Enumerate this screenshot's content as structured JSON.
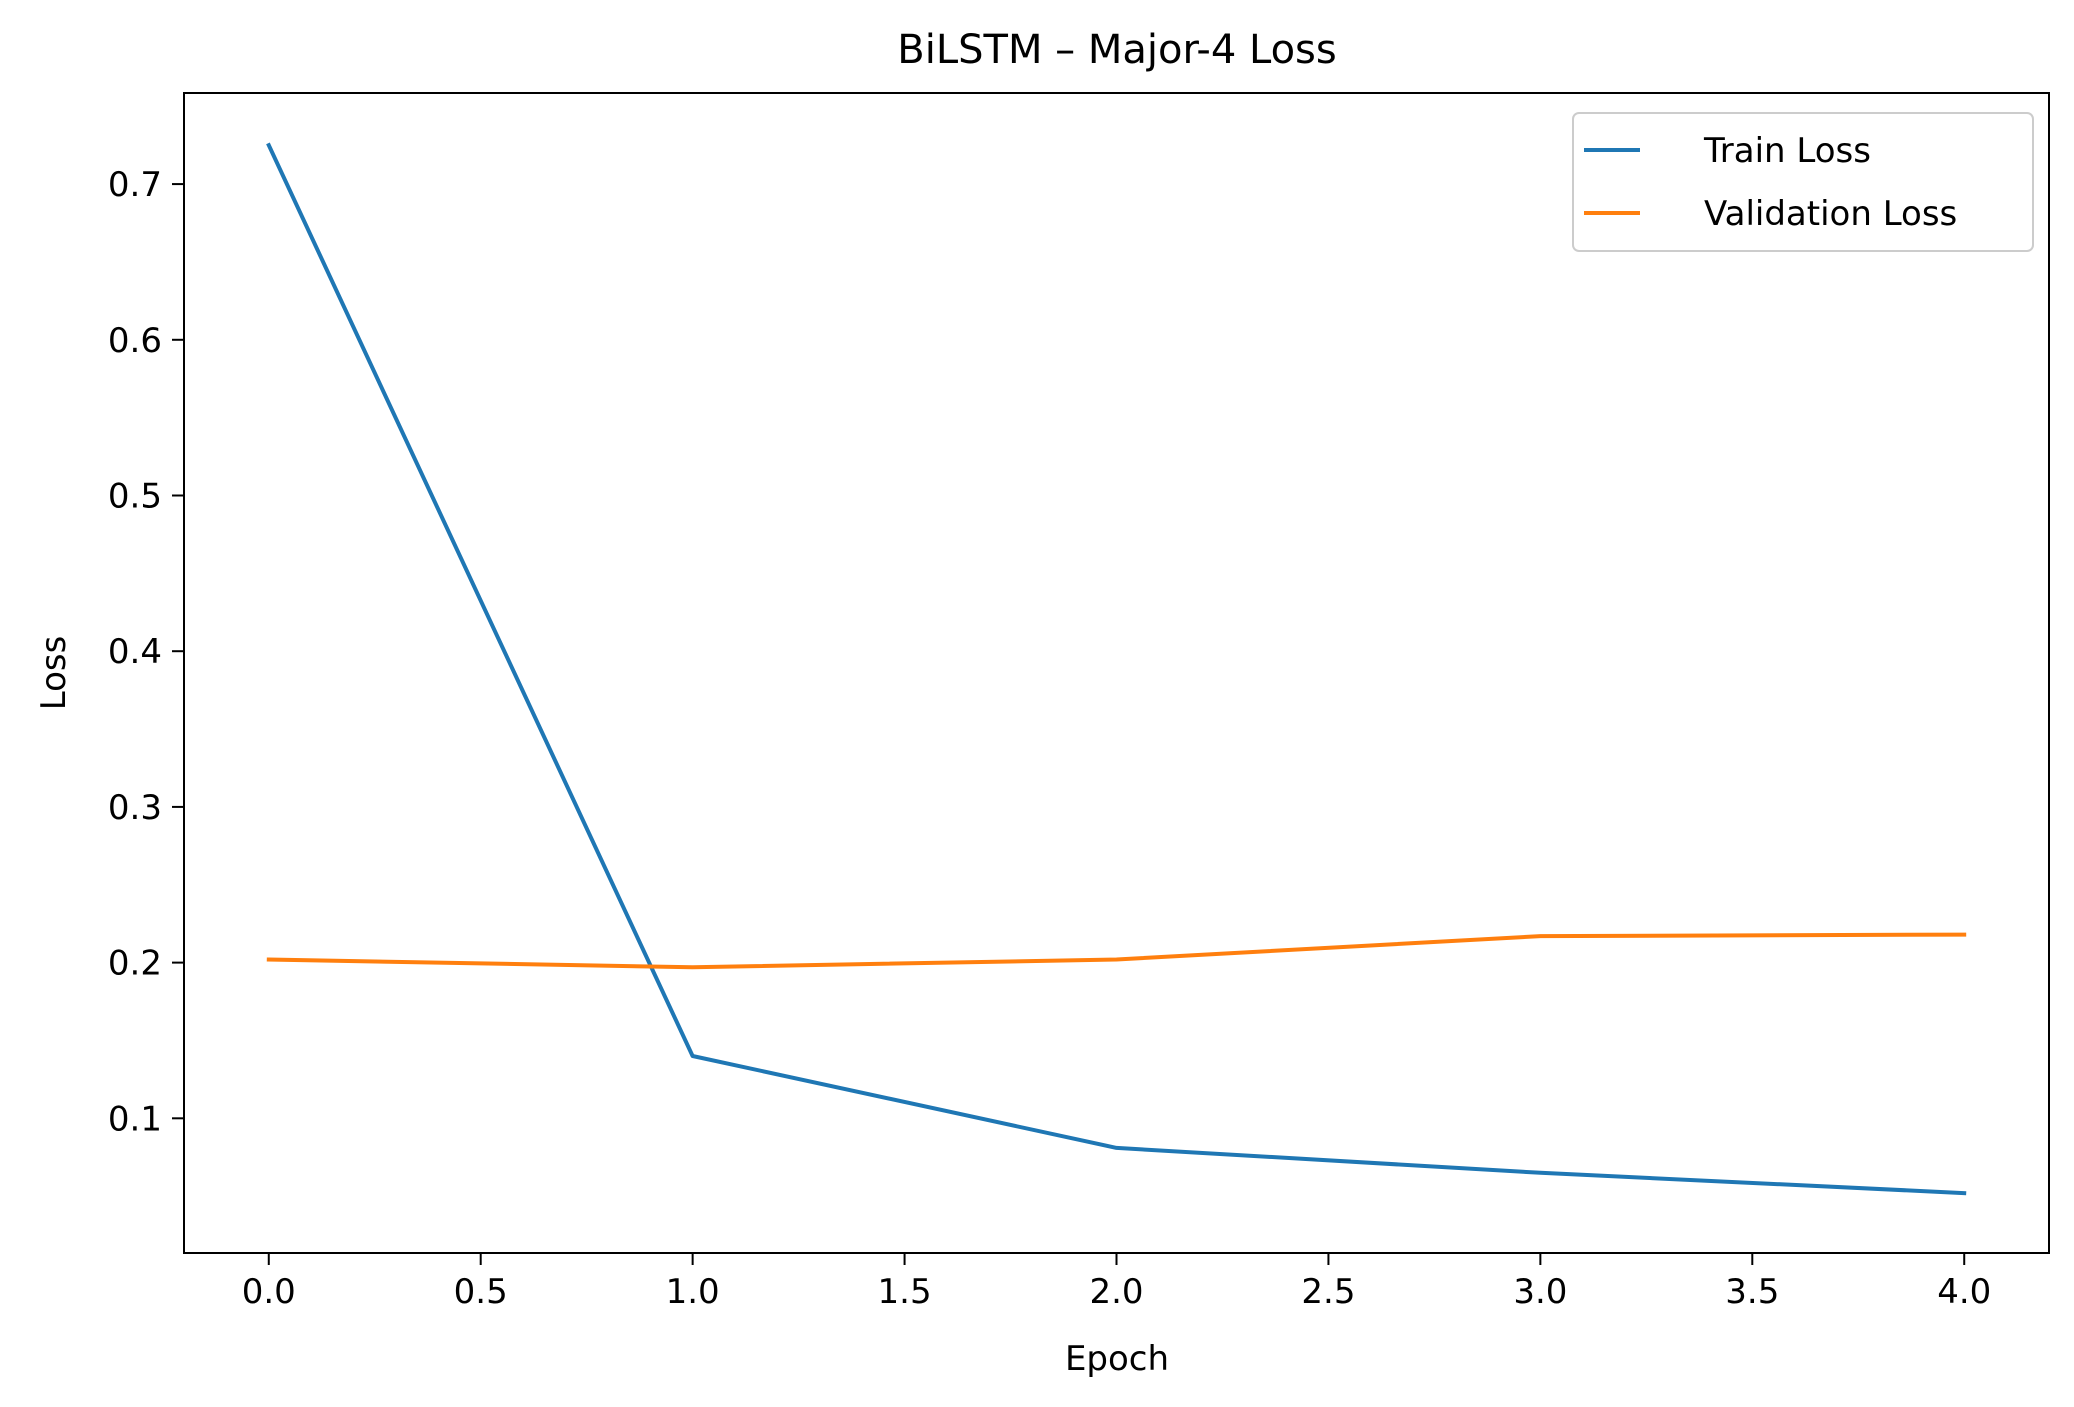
{
  "chart_data": {
    "type": "line",
    "title": "BiLSTM – Major-4 Loss",
    "xlabel": "Epoch",
    "ylabel": "Loss",
    "x": [
      0,
      1,
      2,
      3,
      4
    ],
    "series": [
      {
        "name": "Train Loss",
        "color": "#1f77b4",
        "values": [
          0.725,
          0.14,
          0.081,
          0.065,
          0.052
        ]
      },
      {
        "name": "Validation Loss",
        "color": "#ff7f0e",
        "values": [
          0.202,
          0.197,
          0.202,
          0.217,
          0.218
        ]
      }
    ],
    "xlim": [
      -0.2,
      4.2
    ],
    "ylim": [
      0.0135,
      0.7585
    ],
    "xticks": [
      0.0,
      0.5,
      1.0,
      1.5,
      2.0,
      2.5,
      3.0,
      3.5,
      4.0
    ],
    "xtick_labels": [
      "0.0",
      "0.5",
      "1.0",
      "1.5",
      "2.0",
      "2.5",
      "3.0",
      "3.5",
      "4.0"
    ],
    "yticks": [
      0.1,
      0.2,
      0.3,
      0.4,
      0.5,
      0.6,
      0.7
    ],
    "ytick_labels": [
      "0.1",
      "0.2",
      "0.3",
      "0.4",
      "0.5",
      "0.6",
      "0.7"
    ],
    "grid": false,
    "legend": "top-right"
  }
}
